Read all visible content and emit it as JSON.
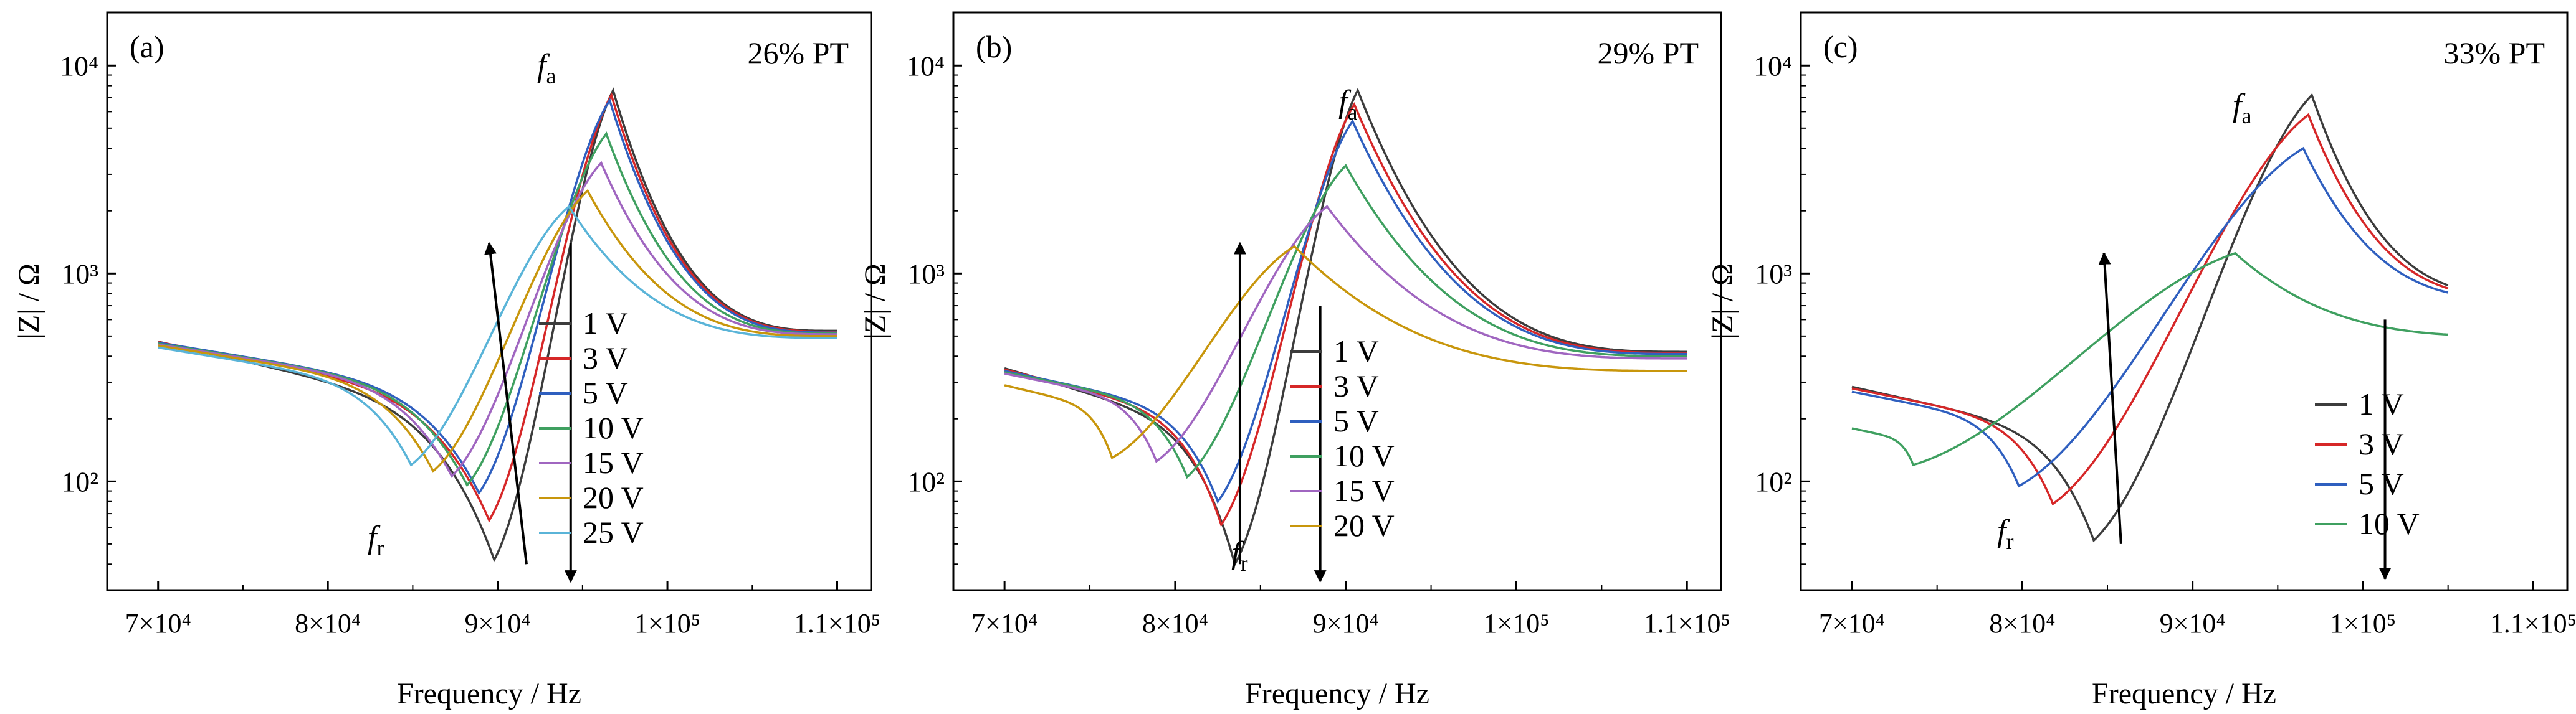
{
  "colors": {
    "1 V": "#3c3c3c",
    "3 V": "#d62728",
    "5 V": "#2f5fbf",
    "10 V": "#3fa060",
    "15 V": "#a066c0",
    "20 V": "#c8960c",
    "25 V": "#5ab4d8"
  },
  "chart_data": [
    {
      "type": "line",
      "panel_label": "(a)",
      "annotation": "26% PT",
      "xlabel": "Frequency / Hz",
      "ylabel": "|Z| / Ω",
      "x_scale": "linear",
      "y_scale": "log",
      "xlim": [
        67000,
        112000
      ],
      "ylim": [
        30,
        18000
      ],
      "x_ticks": [
        70000,
        80000,
        90000,
        100000,
        110000
      ],
      "x_tick_labels": [
        "7×10⁴",
        "8×10⁴",
        "9×10⁴",
        "1×10⁵",
        "1.1×10⁵"
      ],
      "y_ticks": [
        100,
        1000,
        10000
      ],
      "y_tick_labels": [
        "10²",
        "10³",
        "10⁴"
      ],
      "grid": false,
      "fa_label": "f_a",
      "fr_label": "f_r",
      "legend_position": "center-right",
      "arrows": [
        {
          "from": [
            91700,
            40
          ],
          "to": [
            89500,
            1400
          ],
          "meaning": "f_r minimum rises with voltage"
        },
        {
          "from": [
            94300,
            1400
          ],
          "to": [
            94300,
            33
          ],
          "meaning": "f_a peak falls with voltage"
        }
      ],
      "series": [
        {
          "name": "1 V",
          "fr": 89800,
          "zmin": 42,
          "fa": 96800,
          "zmax": 7600,
          "z_start": 470,
          "z_end": 530
        },
        {
          "name": "3 V",
          "fr": 89500,
          "zmin": 65,
          "fa": 96700,
          "zmax": 7200,
          "z_start": 468,
          "z_end": 525
        },
        {
          "name": "5 V",
          "fr": 88900,
          "zmin": 88,
          "fa": 96600,
          "zmax": 6800,
          "z_start": 465,
          "z_end": 520
        },
        {
          "name": "10 V",
          "fr": 88200,
          "zmin": 96,
          "fa": 96400,
          "zmax": 4700,
          "z_start": 460,
          "z_end": 515
        },
        {
          "name": "15 V",
          "fr": 87300,
          "zmin": 106,
          "fa": 96100,
          "zmax": 3400,
          "z_start": 455,
          "z_end": 510
        },
        {
          "name": "20 V",
          "fr": 86200,
          "zmin": 112,
          "fa": 95300,
          "zmax": 2500,
          "z_start": 450,
          "z_end": 500
        },
        {
          "name": "25 V",
          "fr": 84900,
          "zmin": 120,
          "fa": 94200,
          "zmax": 2100,
          "z_start": 440,
          "z_end": 490
        }
      ]
    },
    {
      "type": "line",
      "panel_label": "(b)",
      "annotation": "29% PT",
      "xlabel": "Frequency / Hz",
      "ylabel": "|Z| / Ω",
      "x_scale": "linear",
      "y_scale": "log",
      "xlim": [
        67000,
        112000
      ],
      "ylim": [
        30,
        18000
      ],
      "x_ticks": [
        70000,
        80000,
        90000,
        100000,
        110000
      ],
      "x_tick_labels": [
        "7×10⁴",
        "8×10⁴",
        "9×10⁴",
        "1×10⁵",
        "1.1×10⁵"
      ],
      "y_ticks": [
        100,
        1000,
        10000
      ],
      "y_tick_labels": [
        "10²",
        "10³",
        "10⁴"
      ],
      "grid": false,
      "fa_label": "f_a",
      "fr_label": "f_r",
      "legend_position": "center-right",
      "arrows": [
        {
          "from": [
            83800,
            40
          ],
          "to": [
            83800,
            1400
          ],
          "meaning": "f_r minimum rises with voltage"
        },
        {
          "from": [
            88500,
            700
          ],
          "to": [
            88500,
            33
          ],
          "meaning": "f_a peak falls with voltage"
        }
      ],
      "series": [
        {
          "name": "1 V",
          "fr": 83500,
          "zmin": 40,
          "fa": 90700,
          "zmax": 7600,
          "z_start": 350,
          "z_end": 420
        },
        {
          "name": "3 V",
          "fr": 82700,
          "zmin": 62,
          "fa": 90500,
          "zmax": 6500,
          "z_start": 345,
          "z_end": 415
        },
        {
          "name": "5 V",
          "fr": 82500,
          "zmin": 80,
          "fa": 90400,
          "zmax": 5400,
          "z_start": 340,
          "z_end": 410
        },
        {
          "name": "10 V",
          "fr": 80700,
          "zmin": 105,
          "fa": 90000,
          "zmax": 3300,
          "z_start": 335,
          "z_end": 400
        },
        {
          "name": "15 V",
          "fr": 78900,
          "zmin": 125,
          "fa": 88900,
          "zmax": 2100,
          "z_start": 330,
          "z_end": 390
        },
        {
          "name": "20 V",
          "fr": 76300,
          "zmin": 130,
          "fa": 87000,
          "zmax": 1350,
          "z_start": 290,
          "z_end": 340
        }
      ]
    },
    {
      "type": "line",
      "panel_label": "(c)",
      "annotation": "33% PT",
      "xlabel": "Frequency / Hz",
      "ylabel": "|Z| / Ω",
      "x_scale": "linear",
      "y_scale": "log",
      "xlim": [
        67000,
        112000
      ],
      "ylim": [
        30,
        18000
      ],
      "x_ticks": [
        70000,
        80000,
        90000,
        100000,
        110000
      ],
      "x_tick_labels": [
        "7×10⁴",
        "8×10⁴",
        "9×10⁴",
        "1×10⁵",
        "1.1×10⁵"
      ],
      "y_ticks": [
        100,
        1000,
        10000
      ],
      "y_tick_labels": [
        "10²",
        "10³",
        "10⁴"
      ],
      "grid": false,
      "fa_label": "f_a",
      "fr_label": "f_r",
      "legend_position": "center-right",
      "arrows": [
        {
          "from": [
            85800,
            50
          ],
          "to": [
            84800,
            1250
          ],
          "meaning": "f_r minimum rises with voltage"
        },
        {
          "from": [
            101300,
            600
          ],
          "to": [
            101300,
            34
          ],
          "meaning": "f_a peak falls with voltage"
        }
      ],
      "series": [
        {
          "name": "1 V",
          "fr": 84200,
          "zmin": 52,
          "fa": 97000,
          "zmax": 7200,
          "z_start": 285,
          "z_end": 790
        },
        {
          "name": "3 V",
          "fr": 81800,
          "zmin": 78,
          "fa": 96800,
          "zmax": 5800,
          "z_start": 280,
          "z_end": 775
        },
        {
          "name": "5 V",
          "fr": 79800,
          "zmin": 95,
          "fa": 96500,
          "zmax": 4000,
          "z_start": 270,
          "z_end": 755
        },
        {
          "name": "10 V",
          "fr": 73600,
          "zmin": 120,
          "fa": 92500,
          "zmax": 1250,
          "z_start": 180,
          "z_end": 500
        }
      ]
    }
  ]
}
